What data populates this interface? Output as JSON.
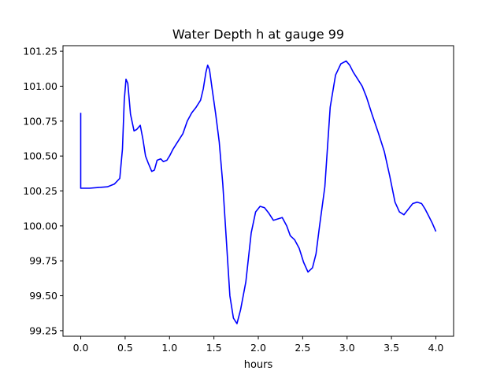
{
  "chart_data": {
    "type": "line",
    "title": "Water Depth h at gauge 99",
    "xlabel": "hours",
    "ylabel": "",
    "xlim": [
      -0.2,
      4.2
    ],
    "ylim": [
      99.21,
      101.29
    ],
    "x_ticks": [
      0.0,
      0.5,
      1.0,
      1.5,
      2.0,
      2.5,
      3.0,
      3.5,
      4.0
    ],
    "x_tick_labels": [
      "0.0",
      "0.5",
      "1.0",
      "1.5",
      "2.0",
      "2.5",
      "3.0",
      "3.5",
      "4.0"
    ],
    "y_ticks": [
      99.25,
      99.5,
      99.75,
      100.0,
      100.25,
      100.5,
      100.75,
      101.0,
      101.25
    ],
    "y_tick_labels": [
      "99.25",
      "99.50",
      "99.75",
      "100.00",
      "100.25",
      "100.50",
      "100.75",
      "101.00",
      "101.25"
    ],
    "grid": false,
    "colors": {
      "line": "#0000ff",
      "axes": "#000000",
      "background": "#ffffff"
    },
    "series": [
      {
        "x": [
          0.0,
          0.0,
          0.0,
          0.1,
          0.2,
          0.3,
          0.38,
          0.44,
          0.47,
          0.49,
          0.51,
          0.53,
          0.56,
          0.6,
          0.63,
          0.67,
          0.7,
          0.73,
          0.76,
          0.8,
          0.83,
          0.86,
          0.9,
          0.93,
          0.97,
          1.0,
          1.04,
          1.08,
          1.15,
          1.2,
          1.25,
          1.3,
          1.35,
          1.38,
          1.41,
          1.43,
          1.45,
          1.48,
          1.52,
          1.56,
          1.6,
          1.64,
          1.68,
          1.72,
          1.76,
          1.8,
          1.86,
          1.92,
          1.97,
          2.02,
          2.07,
          2.12,
          2.17,
          2.22,
          2.27,
          2.32,
          2.36,
          2.41,
          2.46,
          2.51,
          2.56,
          2.61,
          2.65,
          2.69,
          2.75,
          2.81,
          2.87,
          2.93,
          2.99,
          3.03,
          3.07,
          3.12,
          3.17,
          3.22,
          3.28,
          3.35,
          3.42,
          3.48,
          3.54,
          3.59,
          3.64,
          3.69,
          3.74,
          3.79,
          3.84,
          3.88,
          3.92,
          3.96,
          4.0
        ],
        "y": [
          100.81,
          100.45,
          100.27,
          100.27,
          100.275,
          100.28,
          100.3,
          100.34,
          100.55,
          100.9,
          101.05,
          101.02,
          100.8,
          100.68,
          100.69,
          100.72,
          100.62,
          100.5,
          100.45,
          100.39,
          100.4,
          100.47,
          100.48,
          100.46,
          100.47,
          100.5,
          100.55,
          100.59,
          100.66,
          100.75,
          100.81,
          100.85,
          100.9,
          100.98,
          101.1,
          101.15,
          101.12,
          100.98,
          100.8,
          100.6,
          100.3,
          99.9,
          99.5,
          99.34,
          99.3,
          99.4,
          99.6,
          99.95,
          100.1,
          100.14,
          100.13,
          100.09,
          100.04,
          100.05,
          100.06,
          100.0,
          99.93,
          99.9,
          99.84,
          99.74,
          99.67,
          99.7,
          99.8,
          100.0,
          100.28,
          100.85,
          101.08,
          101.16,
          101.18,
          101.15,
          101.1,
          101.05,
          101.0,
          100.92,
          100.8,
          100.67,
          100.53,
          100.36,
          100.17,
          100.1,
          100.08,
          100.12,
          100.16,
          100.17,
          100.16,
          100.12,
          100.07,
          100.02,
          99.96
        ]
      }
    ]
  }
}
